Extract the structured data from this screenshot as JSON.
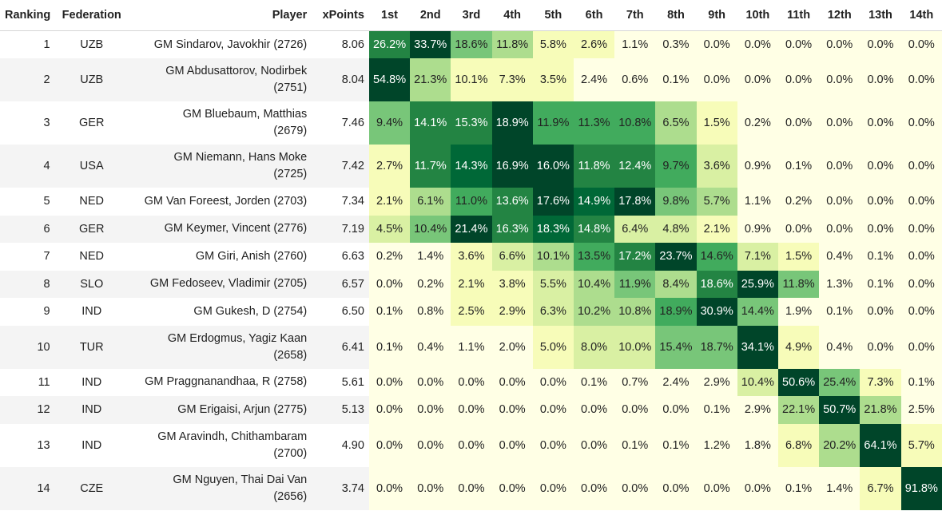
{
  "chart_data": {
    "type": "table",
    "columns": [
      "Ranking",
      "Federation",
      "Player",
      "xPoints",
      "1st",
      "2nd",
      "3rd",
      "4th",
      "5th",
      "6th",
      "7th",
      "8th",
      "9th",
      "10th",
      "11th",
      "12th",
      "13th",
      "14th"
    ],
    "rows": [
      {
        "rank": "1",
        "fed": "UZB",
        "player": [
          "GM Sindarov, Javokhir (2726)"
        ],
        "xpoints": "8.06",
        "pct": [
          "26.2%",
          "33.7%",
          "18.6%",
          "11.8%",
          "5.8%",
          "2.6%",
          "1.1%",
          "0.3%",
          "0.0%",
          "0.0%",
          "0.0%",
          "0.0%",
          "0.0%",
          "0.0%"
        ]
      },
      {
        "rank": "2",
        "fed": "UZB",
        "player": [
          "GM Abdusattorov, Nodirbek",
          "(2751)"
        ],
        "xpoints": "8.04",
        "pct": [
          "54.8%",
          "21.3%",
          "10.1%",
          "7.3%",
          "3.5%",
          "2.4%",
          "0.6%",
          "0.1%",
          "0.0%",
          "0.0%",
          "0.0%",
          "0.0%",
          "0.0%",
          "0.0%"
        ]
      },
      {
        "rank": "3",
        "fed": "GER",
        "player": [
          "GM Bluebaum, Matthias",
          "(2679)"
        ],
        "xpoints": "7.46",
        "pct": [
          "9.4%",
          "14.1%",
          "15.3%",
          "18.9%",
          "11.9%",
          "11.3%",
          "10.8%",
          "6.5%",
          "1.5%",
          "0.2%",
          "0.0%",
          "0.0%",
          "0.0%",
          "0.0%"
        ]
      },
      {
        "rank": "4",
        "fed": "USA",
        "player": [
          "GM Niemann, Hans Moke",
          "(2725)"
        ],
        "xpoints": "7.42",
        "pct": [
          "2.7%",
          "11.7%",
          "14.3%",
          "16.9%",
          "16.0%",
          "11.8%",
          "12.4%",
          "9.7%",
          "3.6%",
          "0.9%",
          "0.1%",
          "0.0%",
          "0.0%",
          "0.0%"
        ]
      },
      {
        "rank": "5",
        "fed": "NED",
        "player": [
          "GM Van Foreest, Jorden (2703)"
        ],
        "xpoints": "7.34",
        "pct": [
          "2.1%",
          "6.1%",
          "11.0%",
          "13.6%",
          "17.6%",
          "14.9%",
          "17.8%",
          "9.8%",
          "5.7%",
          "1.1%",
          "0.2%",
          "0.0%",
          "0.0%",
          "0.0%"
        ]
      },
      {
        "rank": "6",
        "fed": "GER",
        "player": [
          "GM Keymer, Vincent (2776)"
        ],
        "xpoints": "7.19",
        "pct": [
          "4.5%",
          "10.4%",
          "21.4%",
          "16.3%",
          "18.3%",
          "14.8%",
          "6.4%",
          "4.8%",
          "2.1%",
          "0.9%",
          "0.0%",
          "0.0%",
          "0.0%",
          "0.0%"
        ]
      },
      {
        "rank": "7",
        "fed": "NED",
        "player": [
          "GM Giri, Anish (2760)"
        ],
        "xpoints": "6.63",
        "pct": [
          "0.2%",
          "1.4%",
          "3.6%",
          "6.6%",
          "10.1%",
          "13.5%",
          "17.2%",
          "23.7%",
          "14.6%",
          "7.1%",
          "1.5%",
          "0.4%",
          "0.1%",
          "0.0%"
        ]
      },
      {
        "rank": "8",
        "fed": "SLO",
        "player": [
          "GM Fedoseev, Vladimir (2705)"
        ],
        "xpoints": "6.57",
        "pct": [
          "0.0%",
          "0.2%",
          "2.1%",
          "3.8%",
          "5.5%",
          "10.4%",
          "11.9%",
          "8.4%",
          "18.6%",
          "25.9%",
          "11.8%",
          "1.3%",
          "0.1%",
          "0.0%"
        ]
      },
      {
        "rank": "9",
        "fed": "IND",
        "player": [
          "GM Gukesh, D (2754)"
        ],
        "xpoints": "6.50",
        "pct": [
          "0.1%",
          "0.8%",
          "2.5%",
          "2.9%",
          "6.3%",
          "10.2%",
          "10.8%",
          "18.9%",
          "30.9%",
          "14.4%",
          "1.9%",
          "0.1%",
          "0.0%",
          "0.0%"
        ]
      },
      {
        "rank": "10",
        "fed": "TUR",
        "player": [
          "GM Erdogmus, Yagiz Kaan",
          "(2658)"
        ],
        "xpoints": "6.41",
        "pct": [
          "0.1%",
          "0.4%",
          "1.1%",
          "2.0%",
          "5.0%",
          "8.0%",
          "10.0%",
          "15.4%",
          "18.7%",
          "34.1%",
          "4.9%",
          "0.4%",
          "0.0%",
          "0.0%"
        ]
      },
      {
        "rank": "11",
        "fed": "IND",
        "player": [
          "GM Praggnanandhaa, R (2758)"
        ],
        "xpoints": "5.61",
        "pct": [
          "0.0%",
          "0.0%",
          "0.0%",
          "0.0%",
          "0.0%",
          "0.1%",
          "0.7%",
          "2.4%",
          "2.9%",
          "10.4%",
          "50.6%",
          "25.4%",
          "7.3%",
          "0.1%"
        ]
      },
      {
        "rank": "12",
        "fed": "IND",
        "player": [
          "GM Erigaisi, Arjun (2775)"
        ],
        "xpoints": "5.13",
        "pct": [
          "0.0%",
          "0.0%",
          "0.0%",
          "0.0%",
          "0.0%",
          "0.0%",
          "0.0%",
          "0.0%",
          "0.1%",
          "2.9%",
          "22.1%",
          "50.7%",
          "21.8%",
          "2.5%"
        ]
      },
      {
        "rank": "13",
        "fed": "IND",
        "player": [
          "GM Aravindh, Chithambaram",
          "(2700)"
        ],
        "xpoints": "4.90",
        "pct": [
          "0.0%",
          "0.0%",
          "0.0%",
          "0.0%",
          "0.0%",
          "0.0%",
          "0.1%",
          "0.1%",
          "1.2%",
          "1.8%",
          "6.8%",
          "20.2%",
          "64.1%",
          "5.7%"
        ]
      },
      {
        "rank": "14",
        "fed": "CZE",
        "player": [
          "GM Nguyen, Thai Dai Van",
          "(2656)"
        ],
        "xpoints": "3.74",
        "pct": [
          "0.0%",
          "0.0%",
          "0.0%",
          "0.0%",
          "0.0%",
          "0.0%",
          "0.0%",
          "0.0%",
          "0.0%",
          "0.0%",
          "0.1%",
          "1.4%",
          "6.7%",
          "91.8%"
        ]
      }
    ],
    "color_scale": [
      "#ffffe5",
      "#f7fcb9",
      "#d9f0a3",
      "#addd8e",
      "#78c679",
      "#41ab5d",
      "#238443",
      "#006837",
      "#004529"
    ]
  }
}
